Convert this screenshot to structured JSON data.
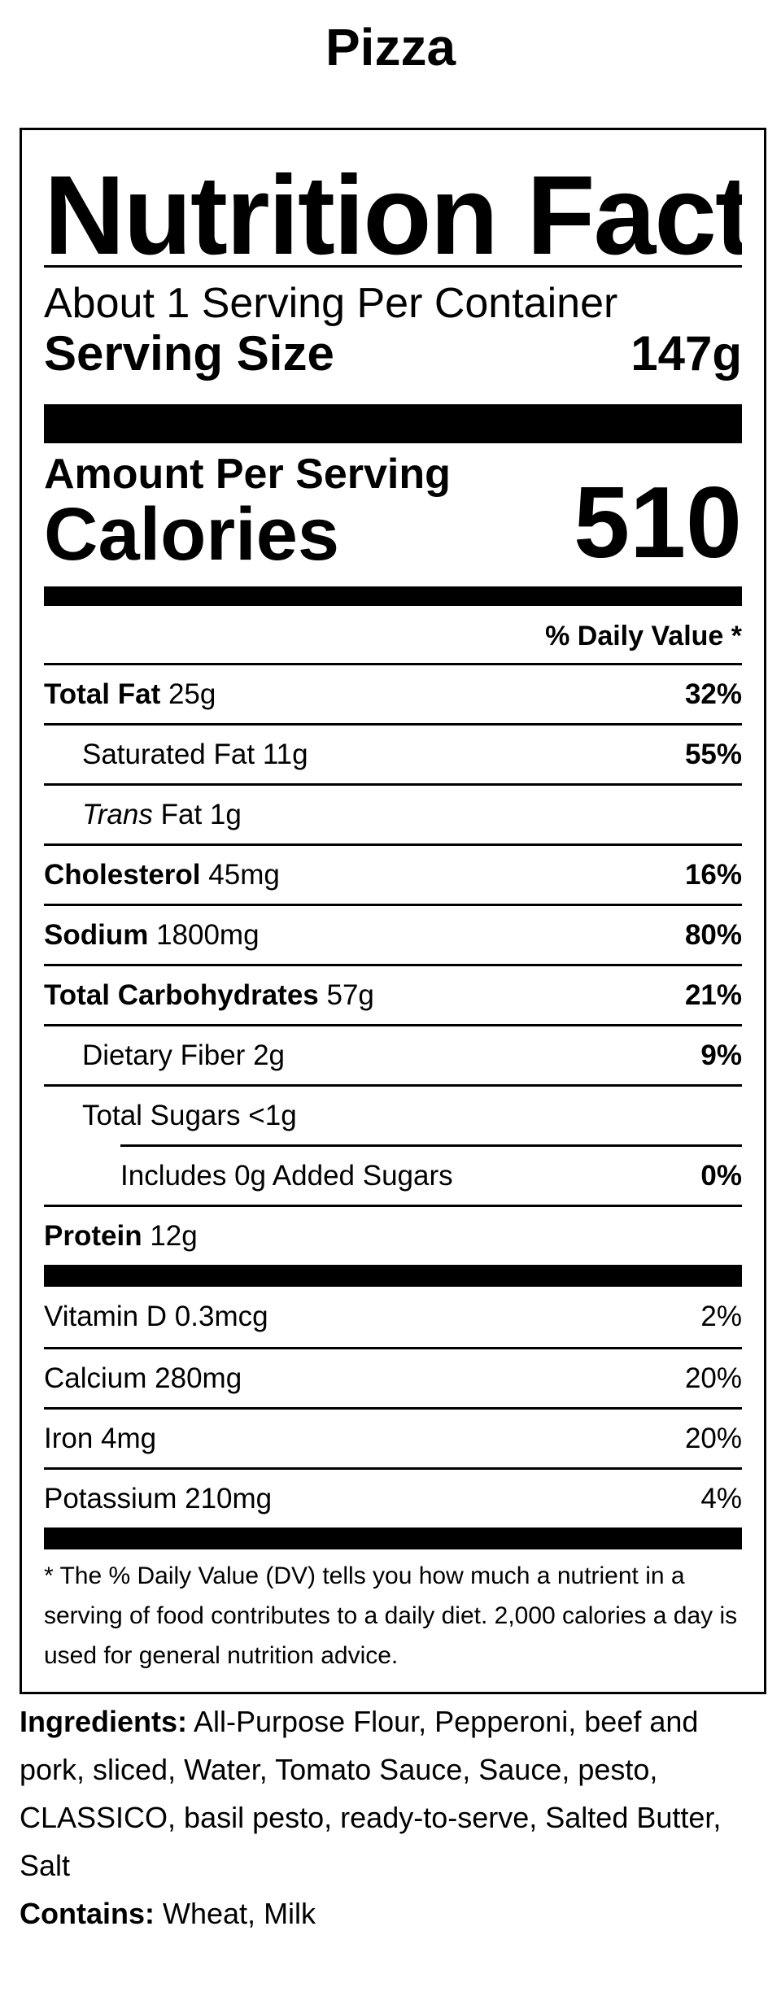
{
  "title": "Pizza",
  "label": {
    "heading": "Nutrition Facts",
    "servings_per_container": "About 1 Serving Per Container",
    "serving_size_label": "Serving Size",
    "serving_size_value": "147g",
    "amount_per_serving": "Amount Per Serving",
    "calories_label": "Calories",
    "calories_value": "510",
    "daily_value_header": "% Daily Value *",
    "nutrients": {
      "total_fat": {
        "name": "Total Fat",
        "amount": "25g",
        "dv": "32%"
      },
      "saturated_fat": {
        "name": "Saturated Fat",
        "amount": "11g",
        "dv": "55%"
      },
      "trans_fat": {
        "name_italic": "Trans",
        "name": "Fat",
        "amount": "1g"
      },
      "cholesterol": {
        "name": "Cholesterol",
        "amount": "45mg",
        "dv": "16%"
      },
      "sodium": {
        "name": "Sodium",
        "amount": "1800mg",
        "dv": "80%"
      },
      "total_carbohydrates": {
        "name": "Total Carbohydrates",
        "amount": "57g",
        "dv": "21%"
      },
      "dietary_fiber": {
        "name": "Dietary Fiber",
        "amount": "2g",
        "dv": "9%"
      },
      "total_sugars": {
        "name": "Total Sugars",
        "amount": "<1g"
      },
      "added_sugars": {
        "text": "Includes 0g Added Sugars",
        "dv": "0%"
      },
      "protein": {
        "name": "Protein",
        "amount": "12g"
      }
    },
    "vitamins": [
      {
        "name": "Vitamin D 0.3mcg",
        "dv": "2%"
      },
      {
        "name": "Calcium 280mg",
        "dv": "20%"
      },
      {
        "name": "Iron 4mg",
        "dv": "20%"
      },
      {
        "name": "Potassium 210mg",
        "dv": "4%"
      }
    ],
    "footnote": "* The % Daily Value (DV) tells you how much a nutrient in a serving of food contributes to a daily diet. 2,000 calories a day is used for general nutrition advice."
  },
  "ingredients": {
    "label": "Ingredients:",
    "text": "All-Purpose Flour, Pepperoni, beef and pork, sliced, Water, Tomato Sauce, Sauce, pesto, CLASSICO, basil pesto, ready-to-serve, Salted Butter, Salt"
  },
  "contains": {
    "label": "Contains:",
    "text": "Wheat, Milk"
  }
}
